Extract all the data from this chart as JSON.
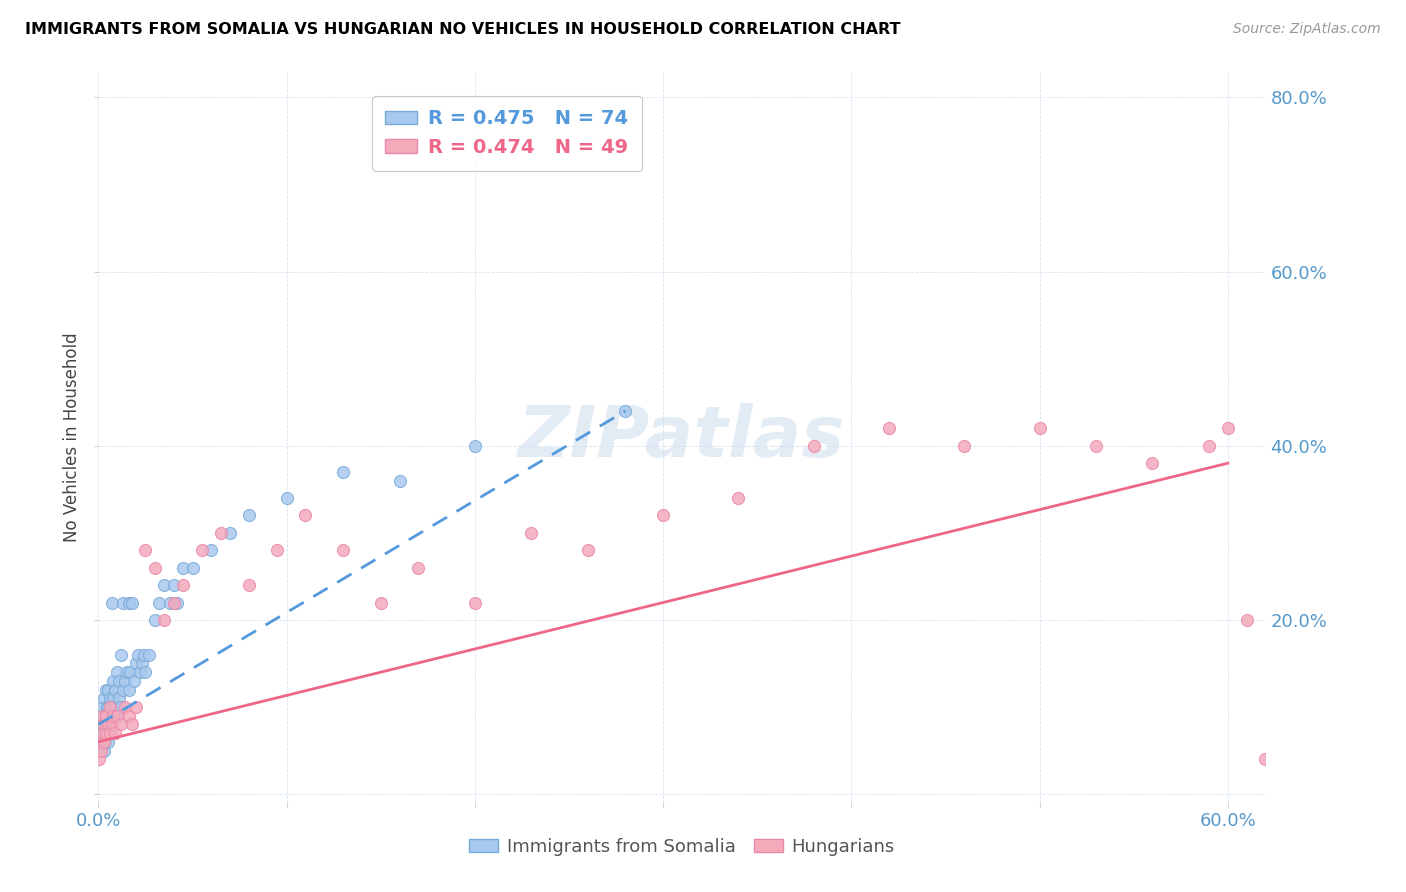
{
  "title": "IMMIGRANTS FROM SOMALIA VS HUNGARIAN NO VEHICLES IN HOUSEHOLD CORRELATION CHART",
  "source": "Source: ZipAtlas.com",
  "ylabel": "No Vehicles in Household",
  "color_somalia": "#A8C8EE",
  "color_hungarian": "#F4AABB",
  "color_somalia_line": "#5599DD",
  "color_hungarian_line": "#EE6688",
  "somalia_x": [
    0.0005,
    0.001,
    0.001,
    0.0015,
    0.0015,
    0.002,
    0.002,
    0.002,
    0.0025,
    0.0025,
    0.003,
    0.003,
    0.003,
    0.003,
    0.0035,
    0.0035,
    0.004,
    0.004,
    0.004,
    0.0045,
    0.0045,
    0.005,
    0.005,
    0.005,
    0.005,
    0.006,
    0.006,
    0.006,
    0.007,
    0.007,
    0.007,
    0.008,
    0.008,
    0.008,
    0.009,
    0.009,
    0.01,
    0.01,
    0.011,
    0.011,
    0.012,
    0.012,
    0.013,
    0.013,
    0.014,
    0.015,
    0.016,
    0.016,
    0.017,
    0.018,
    0.019,
    0.02,
    0.021,
    0.022,
    0.023,
    0.024,
    0.025,
    0.027,
    0.03,
    0.032,
    0.035,
    0.038,
    0.04,
    0.042,
    0.045,
    0.05,
    0.06,
    0.07,
    0.08,
    0.1,
    0.13,
    0.16,
    0.2,
    0.28
  ],
  "somalia_y": [
    0.06,
    0.08,
    0.05,
    0.07,
    0.09,
    0.06,
    0.08,
    0.1,
    0.07,
    0.09,
    0.05,
    0.07,
    0.09,
    0.11,
    0.06,
    0.08,
    0.07,
    0.09,
    0.12,
    0.08,
    0.1,
    0.06,
    0.08,
    0.1,
    0.12,
    0.07,
    0.09,
    0.11,
    0.08,
    0.1,
    0.22,
    0.09,
    0.11,
    0.13,
    0.1,
    0.12,
    0.09,
    0.14,
    0.11,
    0.13,
    0.1,
    0.16,
    0.12,
    0.22,
    0.13,
    0.14,
    0.12,
    0.22,
    0.14,
    0.22,
    0.13,
    0.15,
    0.16,
    0.14,
    0.15,
    0.16,
    0.14,
    0.16,
    0.2,
    0.22,
    0.24,
    0.22,
    0.24,
    0.22,
    0.26,
    0.26,
    0.28,
    0.3,
    0.32,
    0.34,
    0.37,
    0.36,
    0.4,
    0.44
  ],
  "hungarian_x": [
    0.0005,
    0.001,
    0.0015,
    0.002,
    0.002,
    0.003,
    0.003,
    0.004,
    0.004,
    0.005,
    0.006,
    0.006,
    0.007,
    0.008,
    0.009,
    0.01,
    0.012,
    0.014,
    0.016,
    0.018,
    0.02,
    0.025,
    0.03,
    0.035,
    0.04,
    0.045,
    0.055,
    0.065,
    0.08,
    0.095,
    0.11,
    0.13,
    0.15,
    0.17,
    0.2,
    0.23,
    0.26,
    0.3,
    0.34,
    0.38,
    0.42,
    0.46,
    0.5,
    0.53,
    0.56,
    0.59,
    0.6,
    0.61,
    0.62
  ],
  "hungarian_y": [
    0.04,
    0.06,
    0.05,
    0.07,
    0.09,
    0.06,
    0.08,
    0.07,
    0.09,
    0.08,
    0.07,
    0.1,
    0.08,
    0.09,
    0.07,
    0.09,
    0.08,
    0.1,
    0.09,
    0.08,
    0.1,
    0.28,
    0.26,
    0.2,
    0.22,
    0.24,
    0.28,
    0.3,
    0.24,
    0.28,
    0.32,
    0.28,
    0.22,
    0.26,
    0.22,
    0.3,
    0.28,
    0.32,
    0.34,
    0.4,
    0.42,
    0.4,
    0.42,
    0.4,
    0.38,
    0.4,
    0.42,
    0.2,
    0.04
  ],
  "somalia_line_x": [
    0.0,
    0.28
  ],
  "somalia_line_y": [
    0.08,
    0.44
  ],
  "hungarian_line_x": [
    0.0,
    0.6
  ],
  "hungarian_line_y": [
    0.06,
    0.38
  ],
  "xlim": [
    0.0,
    0.62
  ],
  "ylim": [
    -0.01,
    0.83
  ],
  "xticks": [
    0.0,
    0.1,
    0.2,
    0.3,
    0.4,
    0.5,
    0.6
  ],
  "yticks": [
    0.0,
    0.2,
    0.4,
    0.6,
    0.8
  ],
  "xticklabels": [
    "0.0%",
    "",
    "",
    "",
    "",
    "",
    "60.0%"
  ],
  "yticklabels_right": [
    "",
    "20.0%",
    "40.0%",
    "60.0%",
    "80.0%"
  ],
  "legend1_text1": "R = 0.475   N = 74",
  "legend1_text2": "R = 0.474   N = 49",
  "legend2_label1": "Immigrants from Somalia",
  "legend2_label2": "Hungarians"
}
